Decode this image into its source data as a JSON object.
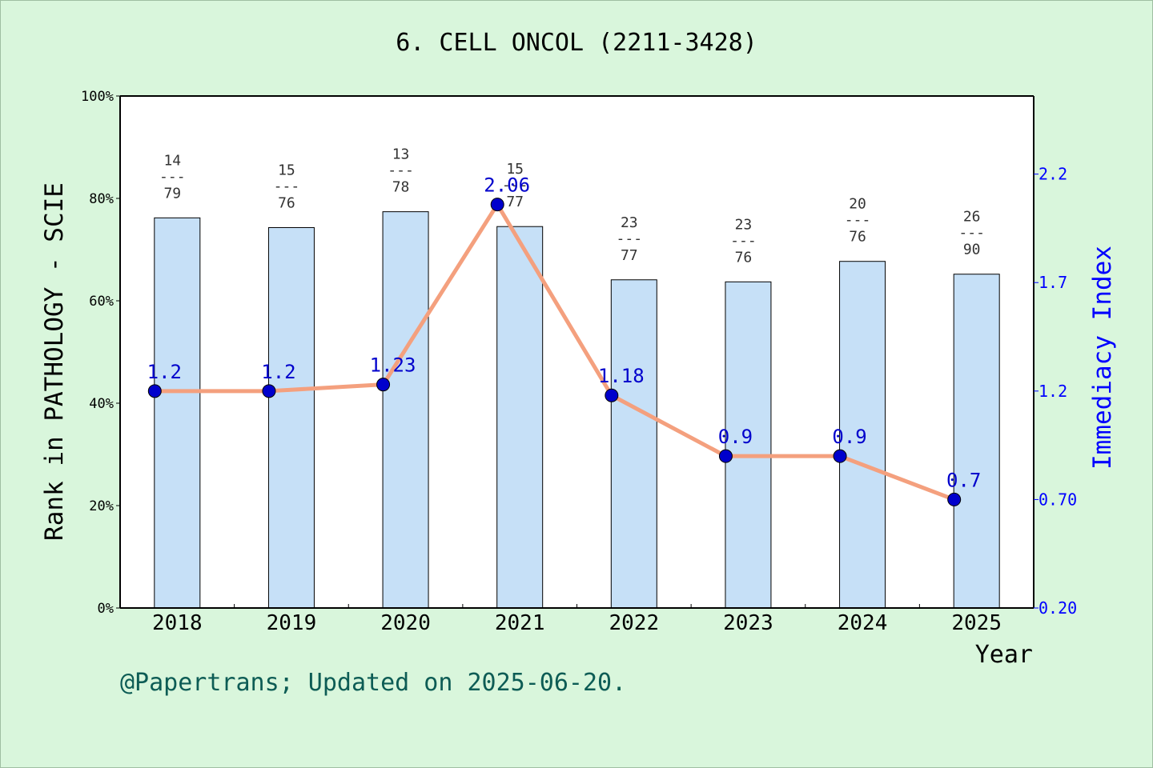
{
  "title": "6. CELL ONCOL (2211-3428)",
  "footer": "@Papertrans; Updated on 2025-06-20.",
  "colors": {
    "background": "#d9f6dc",
    "bar_fill": "#c6e0f7",
    "line": "#f4a07e",
    "marker": "#0000cc",
    "right_axis": "#0000ff",
    "rank_label": "#333333"
  },
  "chart_data": {
    "type": "bar",
    "categories": [
      "2018",
      "2019",
      "2020",
      "2021",
      "2022",
      "2023",
      "2024",
      "2025"
    ],
    "xlabel": "Year",
    "ylabel": "Rank in PATHOLOGY - SCIE",
    "y2label": "Immediacy Index",
    "ylim": [
      0,
      100
    ],
    "yticks": [
      "0%",
      "20%",
      "40%",
      "60%",
      "80%",
      "100%"
    ],
    "y2lim": [
      0.2,
      2.56
    ],
    "y2ticks": [
      0.2,
      0.7,
      1.2,
      1.7,
      2.2
    ],
    "y2tick_labels": [
      "0.20",
      "0.70",
      "1.2",
      "1.7",
      "2.2"
    ],
    "series": [
      {
        "name": "Rank in PATHOLOGY - SCIE",
        "kind": "bar",
        "values": [
          76.2,
          74.3,
          77.4,
          74.5,
          64.1,
          63.7,
          67.7,
          65.2
        ],
        "rank_labels": [
          {
            "rank": "14",
            "sep": "---",
            "total": "79"
          },
          {
            "rank": "15",
            "sep": "---",
            "total": "76"
          },
          {
            "rank": "13",
            "sep": "---",
            "total": "78"
          },
          {
            "rank": "15",
            "sep": "---",
            "total": "77"
          },
          {
            "rank": "23",
            "sep": "---",
            "total": "77"
          },
          {
            "rank": "23",
            "sep": "---",
            "total": "76"
          },
          {
            "rank": "20",
            "sep": "---",
            "total": "76"
          },
          {
            "rank": "26",
            "sep": "---",
            "total": "90"
          }
        ]
      },
      {
        "name": "Immediacy Index",
        "kind": "line",
        "axis": "right",
        "values": [
          1.2,
          1.2,
          1.23,
          2.06,
          1.18,
          0.9,
          0.9,
          0.7
        ],
        "labels": [
          "1.2",
          "1.2",
          "1.23",
          "2.06",
          "1.18",
          "0.9",
          "0.9",
          "0.7"
        ]
      }
    ],
    "grid": false
  }
}
